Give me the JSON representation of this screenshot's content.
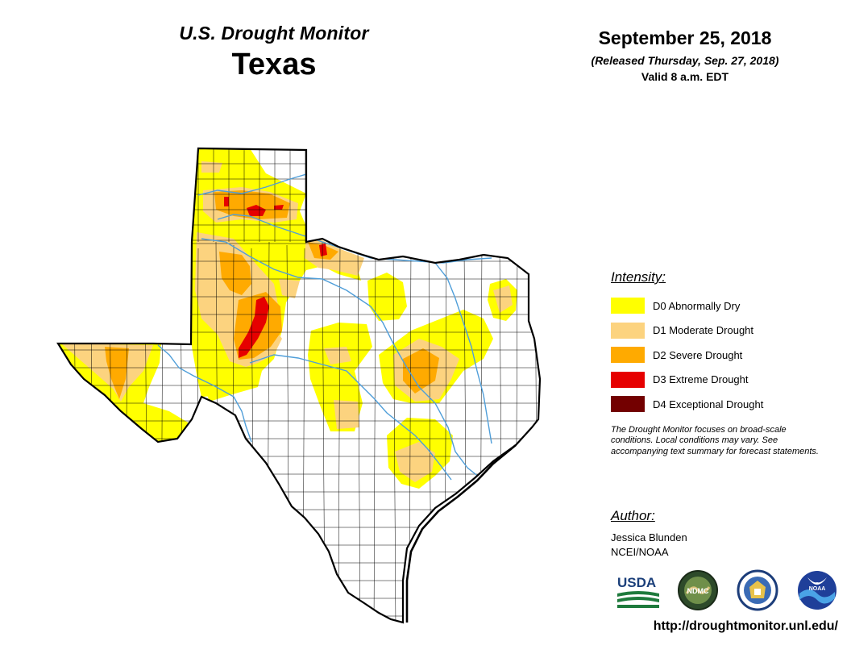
{
  "header": {
    "monitor_title": "U.S. Drought Monitor",
    "state": "Texas",
    "date": "September 25, 2018",
    "released": "(Released Thursday, Sep. 27, 2018)",
    "valid": "Valid 8 a.m. EDT"
  },
  "legend": {
    "heading": "Intensity:",
    "items": [
      {
        "label": "D0 Abnormally Dry",
        "color": "#ffff00"
      },
      {
        "label": "D1 Moderate Drought",
        "color": "#fcd37f"
      },
      {
        "label": "D2 Severe Drought",
        "color": "#ffaa00"
      },
      {
        "label": "D3 Extreme Drought",
        "color": "#e60000"
      },
      {
        "label": "D4 Exceptional Drought",
        "color": "#730000"
      }
    ],
    "note": "The Drought Monitor focuses on broad-scale conditions. Local conditions may vary. See accompanying text summary for forecast statements."
  },
  "author": {
    "heading": "Author:",
    "name": "Jessica Blunden",
    "org": "NCEI/NOAA"
  },
  "logos": {
    "usda": "USDA",
    "ndmc": "NDMC",
    "noaa": "NOAA"
  },
  "footer": {
    "url": "http://droughtmonitor.unl.edu/"
  },
  "colors": {
    "river": "#4f9ed9",
    "county_line": "#000000"
  }
}
